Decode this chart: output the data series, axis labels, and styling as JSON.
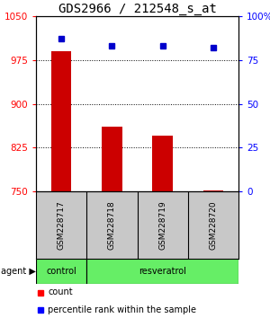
{
  "title": "GDS2966 / 212548_s_at",
  "samples": [
    "GSM228717",
    "GSM228718",
    "GSM228719",
    "GSM228720"
  ],
  "counts": [
    990,
    860,
    845,
    752
  ],
  "percentiles": [
    87,
    83,
    83,
    82
  ],
  "ylim_left": [
    750,
    1050
  ],
  "ylim_right": [
    0,
    100
  ],
  "yticks_left": [
    750,
    825,
    900,
    975,
    1050
  ],
  "yticks_right": [
    0,
    25,
    50,
    75,
    100
  ],
  "bar_color": "#cc0000",
  "dot_color": "#0000cc",
  "agent_labels": [
    "control",
    "resveratrol"
  ],
  "agent_col_counts": [
    1,
    3
  ],
  "agent_color": "#66ee66",
  "sample_bg_color": "#c8c8c8",
  "title_fontsize": 10,
  "tick_fontsize": 7.5,
  "bar_width": 0.4,
  "dot_size": 5
}
